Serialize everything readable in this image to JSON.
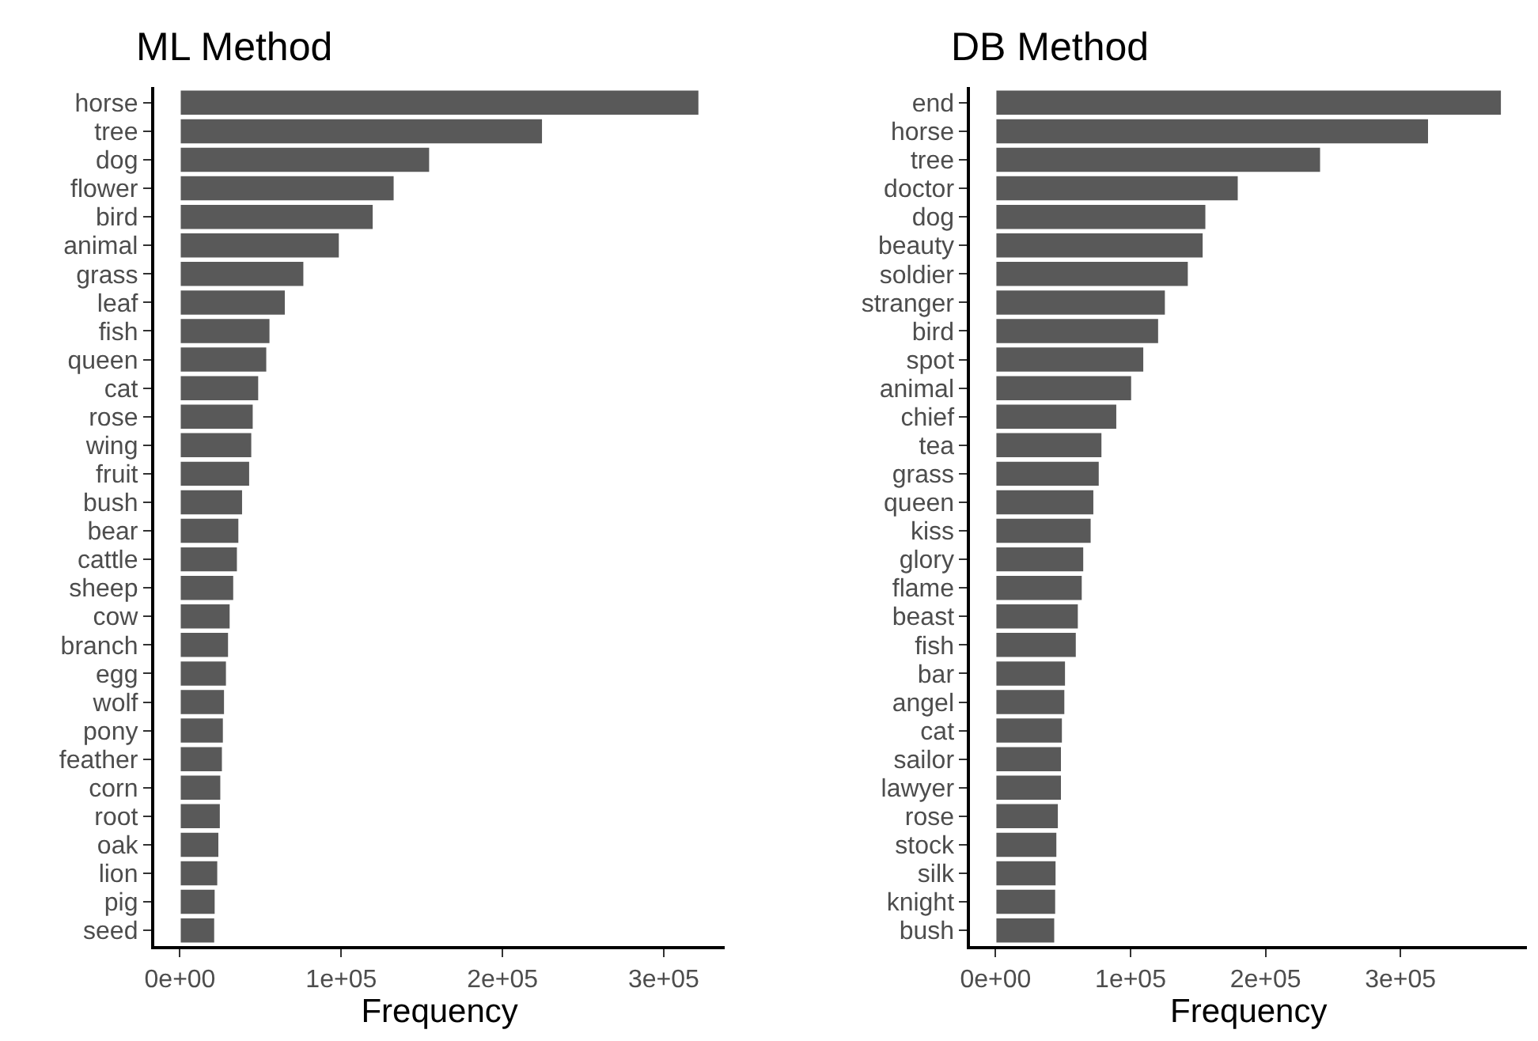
{
  "chart_data": [
    {
      "type": "bar",
      "orientation": "horizontal",
      "title": "ML Method",
      "xlabel": "Frequency",
      "color": "#595959",
      "grid": false,
      "categories": [
        "horse",
        "tree",
        "dog",
        "flower",
        "bird",
        "animal",
        "grass",
        "leaf",
        "fish",
        "queen",
        "cat",
        "rose",
        "wing",
        "fruit",
        "bush",
        "bear",
        "cattle",
        "sheep",
        "cow",
        "branch",
        "egg",
        "wolf",
        "pony",
        "feather",
        "corn",
        "root",
        "oak",
        "lion",
        "pig",
        "seed"
      ],
      "values": [
        322000,
        225000,
        155000,
        133000,
        120000,
        99000,
        77000,
        65500,
        56000,
        54000,
        49000,
        45600,
        44700,
        43400,
        39000,
        36700,
        35800,
        33500,
        31300,
        30300,
        29000,
        27800,
        27100,
        26500,
        25500,
        25200,
        24300,
        23600,
        22000,
        21700
      ],
      "xlim": [
        -16000,
        338000
      ],
      "xticks": [
        {
          "value": 0,
          "label": "0e+00"
        },
        {
          "value": 100000,
          "label": "1e+05"
        },
        {
          "value": 200000,
          "label": "2e+05"
        },
        {
          "value": 300000,
          "label": "3e+05"
        }
      ]
    },
    {
      "type": "bar",
      "orientation": "horizontal",
      "title": "DB Method",
      "xlabel": "Frequency",
      "color": "#595959",
      "grid": false,
      "categories": [
        "end",
        "horse",
        "tree",
        "doctor",
        "dog",
        "beauty",
        "soldier",
        "stranger",
        "bird",
        "spot",
        "animal",
        "chief",
        "tea",
        "grass",
        "queen",
        "kiss",
        "glory",
        "flame",
        "beast",
        "fish",
        "bar",
        "angel",
        "cat",
        "sailor",
        "lawyer",
        "rose",
        "stock",
        "silk",
        "knight",
        "bush"
      ],
      "values": [
        375000,
        321000,
        241000,
        180000,
        156000,
        154000,
        143000,
        126000,
        121000,
        110000,
        101000,
        90000,
        79000,
        77000,
        73000,
        71000,
        65500,
        64400,
        61500,
        60000,
        52000,
        51500,
        49700,
        49000,
        49000,
        46700,
        45600,
        45000,
        44700,
        44000
      ],
      "xlim": [
        -18750,
        393750
      ],
      "xticks": [
        {
          "value": 0,
          "label": "0e+00"
        },
        {
          "value": 100000,
          "label": "1e+05"
        },
        {
          "value": 200000,
          "label": "2e+05"
        },
        {
          "value": 300000,
          "label": "3e+05"
        }
      ]
    }
  ]
}
